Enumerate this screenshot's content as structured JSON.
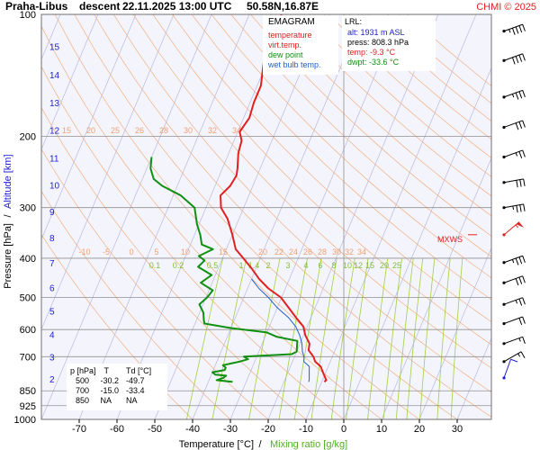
{
  "header": {
    "station": "Praha-Libus",
    "mode": "descent",
    "datetime": "22.11.2025 13:00 UTC",
    "coords": "50.58N,16.87E",
    "copyright": "CHMI © 2025"
  },
  "legend": {
    "title": "EMAGRAM",
    "items": [
      {
        "label": "temperature",
        "color": "#e02020"
      },
      {
        "label": "virt.temp.",
        "color": "#e02020"
      },
      {
        "label": "dew point",
        "color": "#109010"
      },
      {
        "label": "wet bulb temp.",
        "color": "#2060d0"
      }
    ]
  },
  "lrl": {
    "title": "LRL:",
    "alt_label": "alt:",
    "alt": "1931 m ASL",
    "press_label": "press:",
    "press": "808.3 hPa",
    "temp_label": "temp:",
    "temp": "-9.3 °C",
    "dwpt_label": "dwpt:",
    "dwpt": "-33.6 °C"
  },
  "table": {
    "headers": [
      "p [hPa]",
      "T",
      "Td [°C]"
    ],
    "rows": [
      [
        "500",
        "-30.2",
        "-49.7"
      ],
      [
        "700",
        "-15.0",
        "-33.4"
      ],
      [
        "850",
        "NA",
        "NA"
      ]
    ]
  },
  "mxws_label": "MXWS",
  "chart_data": {
    "type": "line",
    "title": "Praha-Libus descent 22.11.2025 13:00 UTC 50.58N,16.87E",
    "xlabel": "Temperature [°C]",
    "xlabel2": "Mixing ratio [g/kg]",
    "ylabel": "Pressure [hPa]",
    "ylabel2": "Altitude [km]",
    "ylabel_sep": "/",
    "xlabel_sep": "/",
    "xlim": [
      -80,
      40
    ],
    "ylim": [
      1000,
      100
    ],
    "y_scale": "log",
    "x_ticks": [
      -70,
      -60,
      -50,
      -40,
      -30,
      -20,
      -10,
      0,
      10,
      20,
      30
    ],
    "p_ticks": [
      100,
      200,
      300,
      400,
      500,
      600,
      700,
      850,
      925,
      1000
    ],
    "alt_ticks": [
      {
        "km": 2,
        "p": 795
      },
      {
        "km": 3,
        "p": 701
      },
      {
        "km": 4,
        "p": 616
      },
      {
        "km": 5,
        "p": 540
      },
      {
        "km": 6,
        "p": 472
      },
      {
        "km": 7,
        "p": 411
      },
      {
        "km": 8,
        "p": 356
      },
      {
        "km": 9,
        "p": 307
      },
      {
        "km": 10,
        "p": 264
      },
      {
        "km": 11,
        "p": 226
      },
      {
        "km": 12,
        "p": 193
      },
      {
        "km": 13,
        "p": 165
      },
      {
        "km": 14,
        "p": 141
      },
      {
        "km": 15,
        "p": 120
      }
    ],
    "dry_adiabat_labels_200": [
      15,
      20,
      25,
      26,
      28,
      30,
      32,
      34
    ],
    "dry_adiabat_labels_400": [
      -10,
      -5,
      0,
      5,
      10,
      15,
      20,
      22,
      24,
      26,
      28,
      30,
      32,
      34
    ],
    "mixing_ratio_labels": [
      "0.1",
      "0.2",
      "0.5",
      "1",
      "1.4",
      "2",
      "3",
      "4",
      "6",
      "8",
      "10",
      "12",
      "15",
      "20",
      "25"
    ],
    "mixing_ratio_values": [
      0.1,
      0.2,
      0.5,
      1,
      1.4,
      2,
      3,
      4,
      6,
      8,
      10,
      12,
      15,
      20,
      25
    ],
    "series": [
      {
        "name": "temperature",
        "color": "#e02020",
        "points": [
          [
            100,
            -61.5
          ],
          [
            110,
            -61.0
          ],
          [
            115,
            -62.0
          ],
          [
            125,
            -61.5
          ],
          [
            135,
            -60.5
          ],
          [
            150,
            -59.0
          ],
          [
            165,
            -59.0
          ],
          [
            180,
            -58.5
          ],
          [
            195,
            -59.5
          ],
          [
            205,
            -58.0
          ],
          [
            220,
            -57.5
          ],
          [
            240,
            -56.0
          ],
          [
            250,
            -55.5
          ],
          [
            265,
            -56.0
          ],
          [
            280,
            -57.5
          ],
          [
            300,
            -56.0
          ],
          [
            320,
            -53.0
          ],
          [
            350,
            -50.0
          ],
          [
            380,
            -47.5
          ],
          [
            400,
            -44.5
          ],
          [
            425,
            -41.0
          ],
          [
            450,
            -38.0
          ],
          [
            475,
            -34.5
          ],
          [
            500,
            -30.2
          ],
          [
            530,
            -27.0
          ],
          [
            560,
            -24.0
          ],
          [
            590,
            -21.0
          ],
          [
            620,
            -19.5
          ],
          [
            650,
            -17.5
          ],
          [
            675,
            -17.0
          ],
          [
            700,
            -15.0
          ],
          [
            720,
            -14.0
          ],
          [
            740,
            -12.0
          ],
          [
            760,
            -11.0
          ],
          [
            780,
            -10.0
          ],
          [
            800,
            -9.0
          ],
          [
            808,
            -9.3
          ]
        ]
      },
      {
        "name": "dew point",
        "color": "#109010",
        "points": [
          [
            225,
            -80.0
          ],
          [
            240,
            -79.0
          ],
          [
            255,
            -77.0
          ],
          [
            265,
            -74.0
          ],
          [
            280,
            -68.0
          ],
          [
            300,
            -63.0
          ],
          [
            330,
            -60.5
          ],
          [
            350,
            -58.5
          ],
          [
            370,
            -57.0
          ],
          [
            380,
            -53.5
          ],
          [
            395,
            -56.5
          ],
          [
            405,
            -54.5
          ],
          [
            420,
            -55.5
          ],
          [
            440,
            -51.0
          ],
          [
            460,
            -53.0
          ],
          [
            480,
            -49.0
          ],
          [
            500,
            -49.7
          ],
          [
            520,
            -51.0
          ],
          [
            545,
            -49.0
          ],
          [
            570,
            -48.0
          ],
          [
            580,
            -47.5
          ],
          [
            595,
            -40.0
          ],
          [
            610,
            -30.0
          ],
          [
            625,
            -27.0
          ],
          [
            640,
            -21.0
          ],
          [
            660,
            -20.5
          ],
          [
            680,
            -20.0
          ],
          [
            690,
            -21.0
          ],
          [
            700,
            -33.4
          ],
          [
            710,
            -32.0
          ],
          [
            720,
            -34.0
          ],
          [
            735,
            -38.0
          ],
          [
            745,
            -37.0
          ],
          [
            755,
            -37.0
          ],
          [
            765,
            -40.0
          ],
          [
            775,
            -39.0
          ],
          [
            780,
            -36.0
          ],
          [
            790,
            -36.5
          ],
          [
            800,
            -38.0
          ],
          [
            808,
            -33.6
          ]
        ]
      },
      {
        "name": "wet bulb temp.",
        "color": "#2060d0",
        "points": [
          [
            450,
            -40.0
          ],
          [
            475,
            -37.0
          ],
          [
            500,
            -33.5
          ],
          [
            530,
            -30.0
          ],
          [
            560,
            -26.0
          ],
          [
            590,
            -23.0
          ],
          [
            620,
            -21.0
          ],
          [
            650,
            -19.5
          ],
          [
            680,
            -18.5
          ],
          [
            700,
            -17.5
          ],
          [
            720,
            -17.0
          ],
          [
            740,
            -15.0
          ],
          [
            760,
            -14.5
          ],
          [
            780,
            -14.0
          ],
          [
            800,
            -13.5
          ],
          [
            808,
            -13.5
          ]
        ]
      }
    ],
    "winds": [
      {
        "p": 110,
        "dir": 250,
        "kt": 45
      },
      {
        "p": 130,
        "dir": 250,
        "kt": 40
      },
      {
        "p": 160,
        "dir": 250,
        "kt": 35
      },
      {
        "p": 190,
        "dir": 250,
        "kt": 30
      },
      {
        "p": 225,
        "dir": 250,
        "kt": 25
      },
      {
        "p": 260,
        "dir": 260,
        "kt": 30
      },
      {
        "p": 300,
        "dir": 260,
        "kt": 35
      },
      {
        "p": 350,
        "dir": 230,
        "kt": 55,
        "color": "#e02020"
      },
      {
        "p": 410,
        "dir": 250,
        "kt": 35
      },
      {
        "p": 460,
        "dir": 250,
        "kt": 30
      },
      {
        "p": 520,
        "dir": 250,
        "kt": 25
      },
      {
        "p": 580,
        "dir": 250,
        "kt": 20
      },
      {
        "p": 650,
        "dir": 250,
        "kt": 15
      },
      {
        "p": 720,
        "dir": 240,
        "kt": 15
      },
      {
        "p": 790,
        "dir": 200,
        "kt": 10,
        "color": "#2020d0"
      }
    ],
    "mxws_p": 350,
    "lrl_p": 808,
    "grid": true
  }
}
